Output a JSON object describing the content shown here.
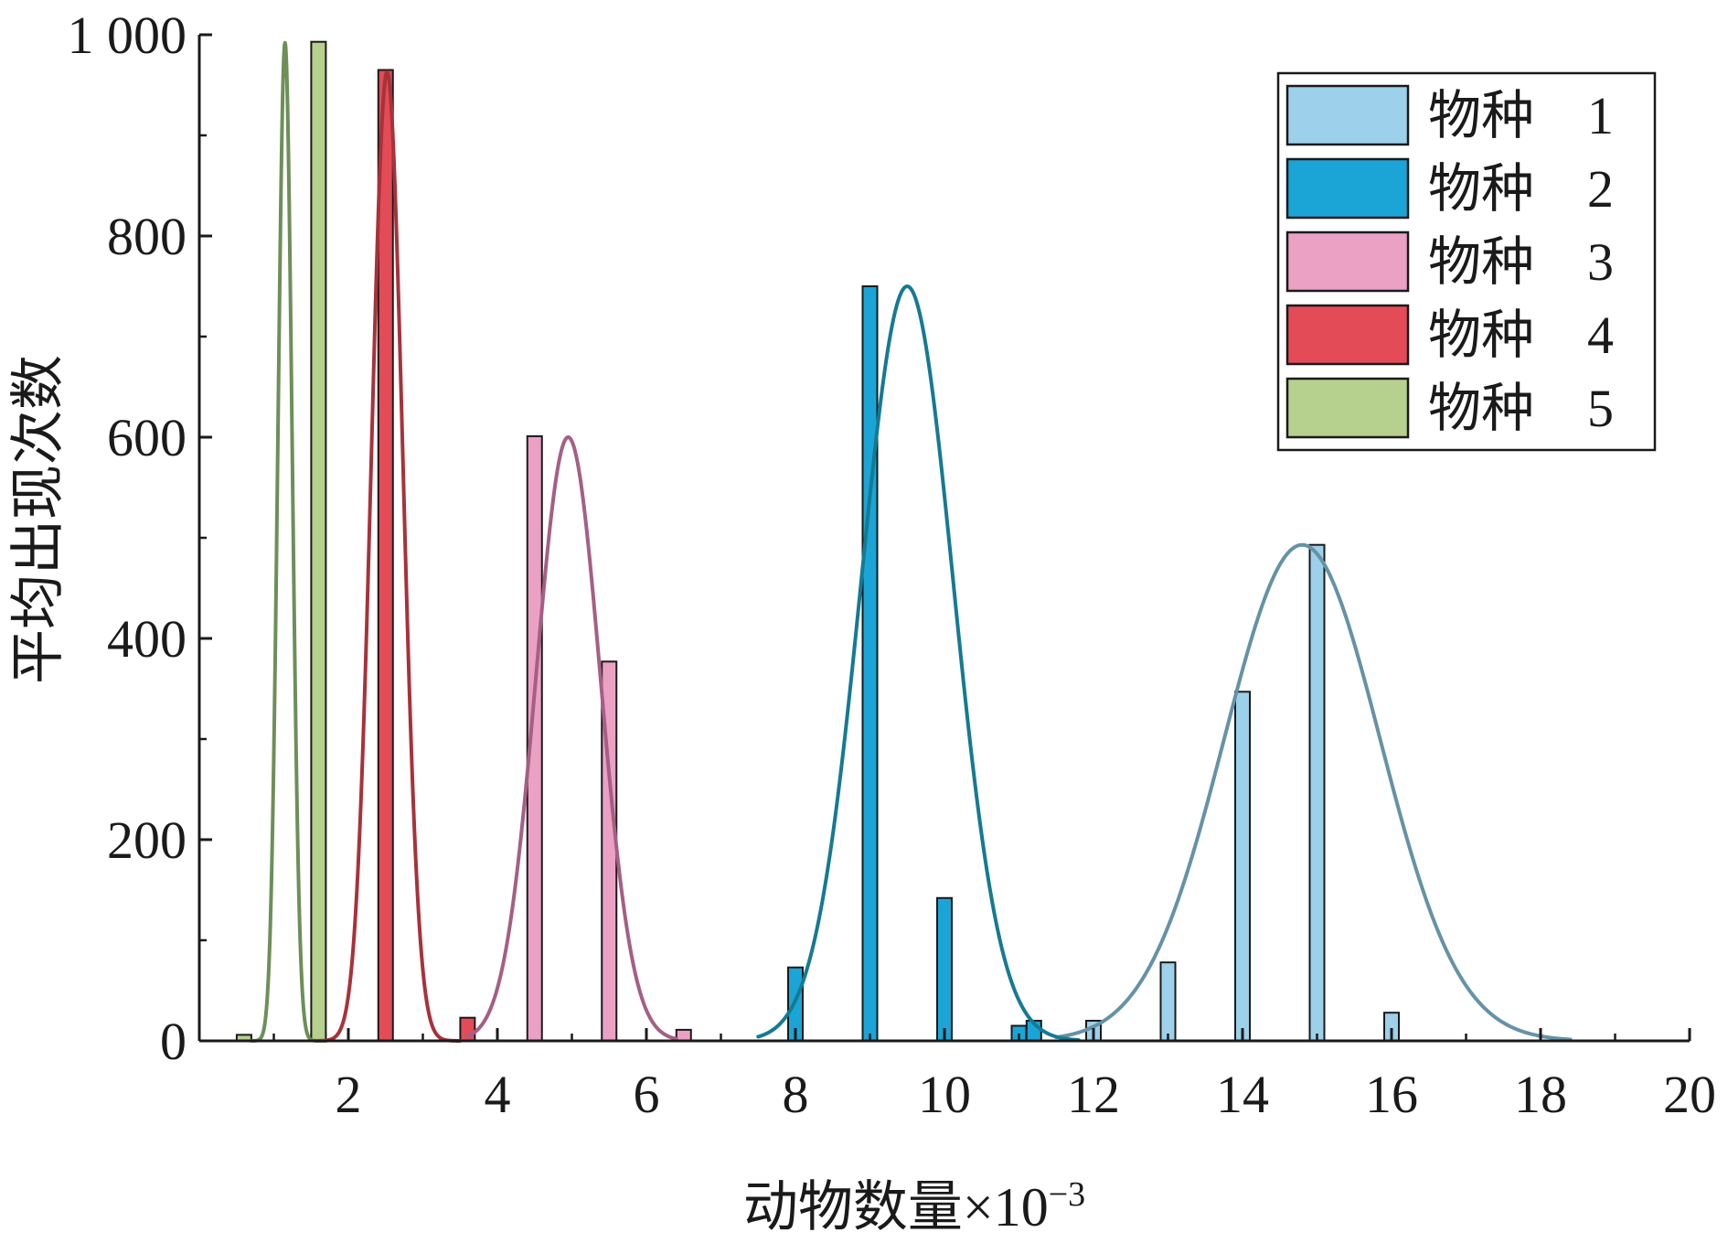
{
  "chart_data": {
    "type": "bar",
    "title": "",
    "xlabel": "动物数量×10",
    "xlabel_exponent": "−3",
    "ylabel": "平均出现次数",
    "xlim": [
      0,
      20
    ],
    "ylim": [
      0,
      1000
    ],
    "x_ticks": [
      2,
      4,
      6,
      8,
      10,
      12,
      14,
      16,
      18,
      20
    ],
    "x_tick_labels": [
      "2",
      "4",
      "6",
      "8",
      "10",
      "12",
      "14",
      "16",
      "18",
      "20"
    ],
    "y_ticks": [
      0,
      200,
      400,
      600,
      800,
      1000
    ],
    "y_tick_labels": [
      "0",
      "200",
      "400",
      "600",
      "800",
      "1 000"
    ],
    "grid": false,
    "legend_position": "top-right",
    "series": [
      {
        "name": "物种　1",
        "color": "#9dd0ea",
        "curve_color": "#6592a6",
        "bars": [
          [
            12,
            20
          ],
          [
            13,
            78
          ],
          [
            14,
            347
          ],
          [
            15,
            493
          ],
          [
            16,
            28
          ]
        ],
        "fit": {
          "mean": 14.8,
          "sd": 1.05,
          "peak": 493,
          "range": [
            11.5,
            18.4
          ]
        }
      },
      {
        "name": "物种　2",
        "color": "#1aa5d6",
        "curve_color": "#157a93",
        "bars": [
          [
            8,
            73
          ],
          [
            9,
            750
          ],
          [
            10,
            142
          ],
          [
            11,
            15
          ],
          [
            11.2,
            20
          ]
        ],
        "fit": {
          "mean": 9.5,
          "sd": 0.62,
          "peak": 750,
          "range": [
            7.5,
            11.8
          ]
        }
      },
      {
        "name": "物种　3",
        "color": "#eaa1c4",
        "curve_color": "#a55f84",
        "bars": [
          [
            4.5,
            601
          ],
          [
            5.5,
            377
          ],
          [
            6.5,
            11
          ]
        ],
        "fit": {
          "mean": 4.95,
          "sd": 0.43,
          "peak": 600,
          "range": [
            3.6,
            6.4
          ]
        }
      },
      {
        "name": "物种　4",
        "color": "#e34b57",
        "curve_color": "#a8323a",
        "bars": [
          [
            1.6,
            7
          ],
          [
            2.5,
            965
          ],
          [
            3.6,
            23
          ]
        ],
        "fit": {
          "mean": 2.52,
          "sd": 0.21,
          "peak": 963,
          "range": [
            1.6,
            3.5
          ]
        }
      },
      {
        "name": "物种　5",
        "color": "#b6d08d",
        "curve_color": "#6d8f58",
        "bars": [
          [
            0.6,
            6
          ],
          [
            1.6,
            993
          ]
        ],
        "fit": {
          "mean": 1.15,
          "sd": 0.095,
          "peak": 992,
          "range": [
            0.7,
            1.7
          ]
        }
      }
    ]
  }
}
